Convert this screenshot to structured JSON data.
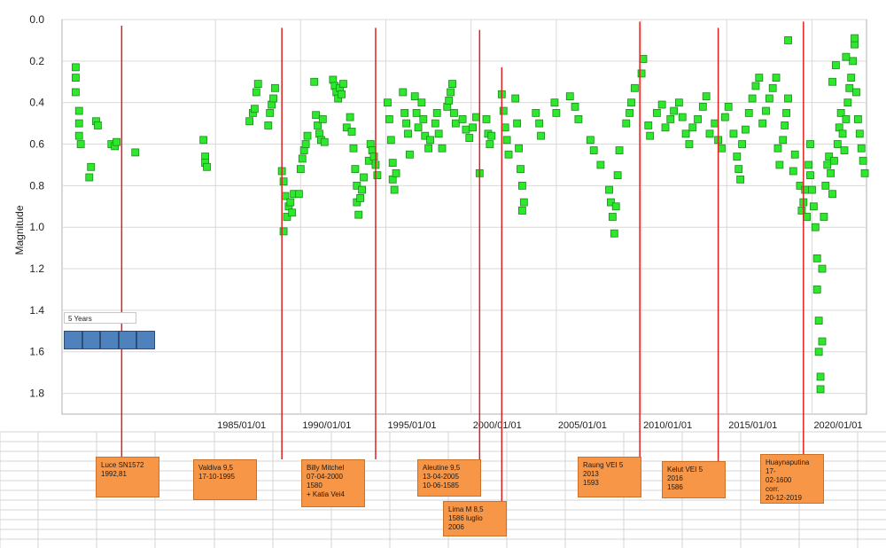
{
  "chart_data": {
    "type": "scatter",
    "ylabel": "Magnitude",
    "y_axis_inverted": true,
    "ylim": [
      0.0,
      1.9
    ],
    "y_ticks": [
      "0.0",
      "0.2",
      "0.4",
      "0.6",
      "0.8",
      "1.0",
      "1.2",
      "1.4",
      "1.6",
      "1.8"
    ],
    "xlim": [
      1976.0,
      2023.2
    ],
    "x_ticks": [
      {
        "year": 1985,
        "label": "1985/01/01"
      },
      {
        "year": 1990,
        "label": "1990/01/01"
      },
      {
        "year": 1995,
        "label": "1995/01/01"
      },
      {
        "year": 2000,
        "label": "2000/01/01"
      },
      {
        "year": 2005,
        "label": "2005/01/01"
      },
      {
        "year": 2010,
        "label": "2010/01/01"
      },
      {
        "year": 2015,
        "label": "2015/01/01"
      },
      {
        "year": 2020,
        "label": "2020/01/01"
      }
    ],
    "grid": true,
    "marker_color": "#2ee82e",
    "marker_edge": "#1a8a1a",
    "event_line_color": "#e02020",
    "series_points": [
      [
        1976.8,
        0.23
      ],
      [
        1976.8,
        0.28
      ],
      [
        1976.8,
        0.35
      ],
      [
        1977.0,
        0.44
      ],
      [
        1977.0,
        0.5
      ],
      [
        1977.0,
        0.56
      ],
      [
        1977.1,
        0.6
      ],
      [
        1977.6,
        0.76
      ],
      [
        1977.7,
        0.71
      ],
      [
        1978.0,
        0.49
      ],
      [
        1978.1,
        0.51
      ],
      [
        1978.9,
        0.6
      ],
      [
        1979.1,
        0.61
      ],
      [
        1979.2,
        0.59
      ],
      [
        1980.3,
        0.64
      ],
      [
        1984.3,
        0.58
      ],
      [
        1984.4,
        0.66
      ],
      [
        1984.4,
        0.69
      ],
      [
        1984.5,
        0.71
      ],
      [
        1987.0,
        0.49
      ],
      [
        1987.2,
        0.45
      ],
      [
        1987.3,
        0.43
      ],
      [
        1987.4,
        0.35
      ],
      [
        1987.5,
        0.31
      ],
      [
        1988.1,
        0.51
      ],
      [
        1988.2,
        0.45
      ],
      [
        1988.3,
        0.41
      ],
      [
        1988.4,
        0.38
      ],
      [
        1988.5,
        0.33
      ],
      [
        1988.9,
        0.73
      ],
      [
        1989.0,
        0.78
      ],
      [
        1989.1,
        0.85
      ],
      [
        1989.0,
        1.02
      ],
      [
        1989.2,
        0.95
      ],
      [
        1989.3,
        0.9
      ],
      [
        1989.4,
        0.88
      ],
      [
        1989.5,
        0.93
      ],
      [
        1989.6,
        0.84
      ],
      [
        1990.0,
        0.72
      ],
      [
        1990.1,
        0.67
      ],
      [
        1990.2,
        0.63
      ],
      [
        1990.3,
        0.6
      ],
      [
        1990.4,
        0.56
      ],
      [
        1989.9,
        0.84
      ],
      [
        1990.8,
        0.3
      ],
      [
        1990.9,
        0.46
      ],
      [
        1991.0,
        0.51
      ],
      [
        1991.1,
        0.55
      ],
      [
        1991.2,
        0.58
      ],
      [
        1991.3,
        0.48
      ],
      [
        1991.4,
        0.59
      ],
      [
        1991.9,
        0.29
      ],
      [
        1992.0,
        0.32
      ],
      [
        1992.1,
        0.35
      ],
      [
        1992.2,
        0.38
      ],
      [
        1992.3,
        0.33
      ],
      [
        1992.4,
        0.36
      ],
      [
        1992.5,
        0.31
      ],
      [
        1992.7,
        0.52
      ],
      [
        1992.9,
        0.47
      ],
      [
        1993.0,
        0.54
      ],
      [
        1993.1,
        0.62
      ],
      [
        1993.2,
        0.72
      ],
      [
        1993.3,
        0.8
      ],
      [
        1993.3,
        0.88
      ],
      [
        1993.4,
        0.94
      ],
      [
        1993.5,
        0.86
      ],
      [
        1993.6,
        0.82
      ],
      [
        1993.7,
        0.76
      ],
      [
        1994.0,
        0.68
      ],
      [
        1994.1,
        0.6
      ],
      [
        1994.2,
        0.63
      ],
      [
        1994.3,
        0.66
      ],
      [
        1994.4,
        0.7
      ],
      [
        1994.5,
        0.75
      ],
      [
        1995.1,
        0.4
      ],
      [
        1995.2,
        0.48
      ],
      [
        1995.3,
        0.58
      ],
      [
        1995.4,
        0.69
      ],
      [
        1995.4,
        0.77
      ],
      [
        1995.5,
        0.82
      ],
      [
        1995.6,
        0.74
      ],
      [
        1996.0,
        0.35
      ],
      [
        1996.1,
        0.45
      ],
      [
        1996.2,
        0.5
      ],
      [
        1996.3,
        0.55
      ],
      [
        1996.4,
        0.65
      ],
      [
        1996.7,
        0.37
      ],
      [
        1996.8,
        0.45
      ],
      [
        1996.9,
        0.52
      ],
      [
        1997.1,
        0.4
      ],
      [
        1997.2,
        0.48
      ],
      [
        1997.3,
        0.56
      ],
      [
        1997.5,
        0.62
      ],
      [
        1997.6,
        0.58
      ],
      [
        1997.9,
        0.5
      ],
      [
        1998.0,
        0.45
      ],
      [
        1998.1,
        0.55
      ],
      [
        1998.3,
        0.62
      ],
      [
        1998.6,
        0.42
      ],
      [
        1998.7,
        0.39
      ],
      [
        1998.8,
        0.35
      ],
      [
        1998.9,
        0.31
      ],
      [
        1999.0,
        0.45
      ],
      [
        1999.1,
        0.5
      ],
      [
        1999.5,
        0.48
      ],
      [
        1999.7,
        0.53
      ],
      [
        1999.9,
        0.57
      ],
      [
        2000.1,
        0.52
      ],
      [
        2000.3,
        0.47
      ],
      [
        2000.5,
        0.74
      ],
      [
        2000.9,
        0.48
      ],
      [
        2001.0,
        0.55
      ],
      [
        2001.1,
        0.6
      ],
      [
        2001.2,
        0.56
      ],
      [
        2001.8,
        0.36
      ],
      [
        2001.9,
        0.44
      ],
      [
        2002.0,
        0.52
      ],
      [
        2002.1,
        0.58
      ],
      [
        2002.2,
        0.65
      ],
      [
        2002.6,
        0.38
      ],
      [
        2002.7,
        0.5
      ],
      [
        2002.8,
        0.62
      ],
      [
        2002.9,
        0.72
      ],
      [
        2003.0,
        0.8
      ],
      [
        2003.0,
        0.92
      ],
      [
        2003.1,
        0.88
      ],
      [
        2003.8,
        0.45
      ],
      [
        2004.0,
        0.5
      ],
      [
        2004.1,
        0.56
      ],
      [
        2004.9,
        0.4
      ],
      [
        2005.0,
        0.45
      ],
      [
        2005.8,
        0.37
      ],
      [
        2006.1,
        0.42
      ],
      [
        2006.3,
        0.48
      ],
      [
        2007.0,
        0.58
      ],
      [
        2007.2,
        0.63
      ],
      [
        2007.6,
        0.7
      ],
      [
        2008.1,
        0.82
      ],
      [
        2008.2,
        0.88
      ],
      [
        2008.3,
        0.95
      ],
      [
        2008.4,
        1.03
      ],
      [
        2008.5,
        0.9
      ],
      [
        2008.6,
        0.75
      ],
      [
        2008.7,
        0.63
      ],
      [
        2009.1,
        0.5
      ],
      [
        2009.3,
        0.45
      ],
      [
        2009.4,
        0.4
      ],
      [
        2009.6,
        0.33
      ],
      [
        2010.0,
        0.26
      ],
      [
        2010.1,
        0.19
      ],
      [
        2010.4,
        0.51
      ],
      [
        2010.5,
        0.56
      ],
      [
        2010.9,
        0.45
      ],
      [
        2011.2,
        0.41
      ],
      [
        2011.4,
        0.52
      ],
      [
        2011.7,
        0.48
      ],
      [
        2011.9,
        0.44
      ],
      [
        2012.2,
        0.4
      ],
      [
        2012.4,
        0.47
      ],
      [
        2012.6,
        0.55
      ],
      [
        2012.8,
        0.6
      ],
      [
        2013.0,
        0.52
      ],
      [
        2013.3,
        0.48
      ],
      [
        2013.6,
        0.42
      ],
      [
        2013.8,
        0.37
      ],
      [
        2014.0,
        0.55
      ],
      [
        2014.3,
        0.5
      ],
      [
        2014.5,
        0.58
      ],
      [
        2014.7,
        0.62
      ],
      [
        2014.9,
        0.47
      ],
      [
        2015.1,
        0.42
      ],
      [
        2015.4,
        0.55
      ],
      [
        2015.6,
        0.66
      ],
      [
        2015.7,
        0.72
      ],
      [
        2015.8,
        0.77
      ],
      [
        2015.9,
        0.6
      ],
      [
        2016.1,
        0.53
      ],
      [
        2016.3,
        0.45
      ],
      [
        2016.5,
        0.38
      ],
      [
        2016.7,
        0.32
      ],
      [
        2016.9,
        0.28
      ],
      [
        2017.1,
        0.5
      ],
      [
        2017.3,
        0.44
      ],
      [
        2017.5,
        0.38
      ],
      [
        2017.7,
        0.33
      ],
      [
        2017.9,
        0.28
      ],
      [
        2018.0,
        0.62
      ],
      [
        2018.1,
        0.7
      ],
      [
        2018.3,
        0.58
      ],
      [
        2018.4,
        0.51
      ],
      [
        2018.5,
        0.45
      ],
      [
        2018.6,
        0.38
      ],
      [
        2018.6,
        0.1
      ],
      [
        2018.9,
        0.73
      ],
      [
        2019.0,
        0.65
      ],
      [
        2019.3,
        0.8
      ],
      [
        2019.4,
        0.92
      ],
      [
        2019.5,
        0.88
      ],
      [
        2019.6,
        0.82
      ],
      [
        2019.7,
        0.95
      ],
      [
        2019.8,
        0.7
      ],
      [
        2019.9,
        0.6
      ],
      [
        2019.9,
        0.75
      ],
      [
        2020.0,
        0.82
      ],
      [
        2020.1,
        0.9
      ],
      [
        2020.2,
        1.0
      ],
      [
        2020.3,
        1.15
      ],
      [
        2020.3,
        1.3
      ],
      [
        2020.4,
        1.45
      ],
      [
        2020.4,
        1.6
      ],
      [
        2020.5,
        1.72
      ],
      [
        2020.5,
        1.78
      ],
      [
        2020.6,
        1.55
      ],
      [
        2020.6,
        1.2
      ],
      [
        2020.7,
        0.95
      ],
      [
        2020.8,
        0.8
      ],
      [
        2020.9,
        0.7
      ],
      [
        2021.0,
        0.66
      ],
      [
        2021.1,
        0.74
      ],
      [
        2021.2,
        0.84
      ],
      [
        2021.3,
        0.68
      ],
      [
        2021.5,
        0.6
      ],
      [
        2021.6,
        0.52
      ],
      [
        2021.7,
        0.45
      ],
      [
        2021.8,
        0.55
      ],
      [
        2021.9,
        0.63
      ],
      [
        2022.0,
        0.48
      ],
      [
        2022.1,
        0.4
      ],
      [
        2022.2,
        0.33
      ],
      [
        2022.3,
        0.28
      ],
      [
        2022.4,
        0.2
      ],
      [
        2022.5,
        0.12
      ],
      [
        2022.6,
        0.35
      ],
      [
        2022.7,
        0.48
      ],
      [
        2022.8,
        0.55
      ],
      [
        2022.9,
        0.62
      ],
      [
        2023.0,
        0.68
      ],
      [
        2023.1,
        0.74
      ],
      [
        2021.2,
        0.3
      ],
      [
        2021.4,
        0.22
      ],
      [
        2022.0,
        0.18
      ],
      [
        2022.5,
        0.09
      ]
    ],
    "event_lines": [
      {
        "x": 1979.5,
        "y_top": 0.03
      },
      {
        "x": 1988.9,
        "y_top": 0.04
      },
      {
        "x": 1994.4,
        "y_top": 0.04
      },
      {
        "x": 2000.5,
        "y_top": 0.05
      },
      {
        "x": 2001.8,
        "y_top": 0.23
      },
      {
        "x": 2009.9,
        "y_top": 0.01
      },
      {
        "x": 2014.5,
        "y_top": 0.04
      },
      {
        "x": 2019.5,
        "y_top": 0.01
      }
    ]
  },
  "annotations": [
    {
      "text": "Luce SN1572\n1992,81"
    },
    {
      "text": "Valdiva 9,5\n17-10-1995"
    },
    {
      "text": "Billy Mitchel\n07-04-2000\n1580\n+ Katia Vei4"
    },
    {
      "text": "Aleutine 9,5\n13-04-2005\n10-06-1585"
    },
    {
      "text": "Lima M 8,5\n1586 luglio\n2006"
    },
    {
      "text": "Raung VEI 5\n2013\n1593"
    },
    {
      "text": "Kelut VEI 5\n2016\n1586"
    },
    {
      "text": "Huaynaputina 17-\n02-1600\ncorr.\n20-12-2019"
    }
  ],
  "timeline_control": {
    "label": "5 Years"
  }
}
